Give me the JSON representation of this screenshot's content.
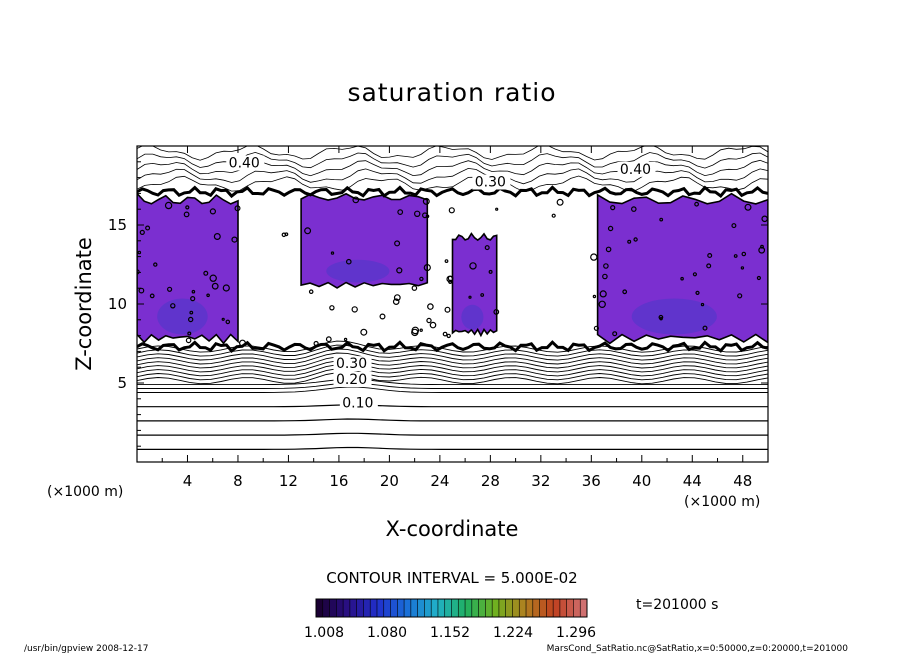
{
  "chart_data": {
    "type": "heatmap",
    "title": "saturation ratio",
    "xlabel": "X-coordinate",
    "ylabel": "Z-coordinate",
    "x_unit": "(×1000 m)",
    "z_unit": "(×1000 m)",
    "xlim": [
      0,
      50
    ],
    "ylim": [
      0,
      20
    ],
    "x_ticks": [
      "4",
      "8",
      "12",
      "16",
      "20",
      "24",
      "28",
      "32",
      "36",
      "40",
      "44",
      "48"
    ],
    "y_ticks": [
      "5",
      "10",
      "15"
    ],
    "contour_interval_label": "CONTOUR INTERVAL = 5.000E-02",
    "contour_labels": [
      {
        "text": "0.10",
        "x": 17.5,
        "y": 3.5
      },
      {
        "text": "0.20",
        "x": 17.0,
        "y": 5.0
      },
      {
        "text": "0.30",
        "x": 17.0,
        "y": 6.0
      },
      {
        "text": "0.40",
        "x": 8.5,
        "y": 18.7
      },
      {
        "text": "0.40",
        "x": 39.5,
        "y": 18.3
      },
      {
        "text": "0.30",
        "x": 28.0,
        "y": 17.5
      }
    ],
    "supersaturated_regions": [
      {
        "x": [
          0.0,
          8.0
        ],
        "z": [
          7.5,
          17.0
        ]
      },
      {
        "x": [
          13.0,
          23.0
        ],
        "z": [
          11.0,
          17.0
        ]
      },
      {
        "x": [
          25.0,
          28.5
        ],
        "z": [
          8.0,
          14.5
        ]
      },
      {
        "x": [
          36.5,
          50.0
        ],
        "z": [
          7.5,
          17.0
        ]
      }
    ],
    "colorbar": {
      "min": 1.008,
      "max": 1.296,
      "tick_labels": [
        "1.008",
        "1.080",
        "1.152",
        "1.224",
        "1.296"
      ],
      "colors": [
        "#1a0033",
        "#2a1088",
        "#2030cc",
        "#1a70d8",
        "#20b0c8",
        "#20b060",
        "#70b020",
        "#b08020",
        "#c04020",
        "#d07070"
      ]
    },
    "fill_color": "#7b2fd0",
    "time_label": "t=201000 s"
  },
  "footer": {
    "left": "/usr/bin/gpview   2008-12-17",
    "right": "MarsCond_SatRatio.nc@SatRatio,x=0:50000,z=0:20000,t=201000"
  }
}
